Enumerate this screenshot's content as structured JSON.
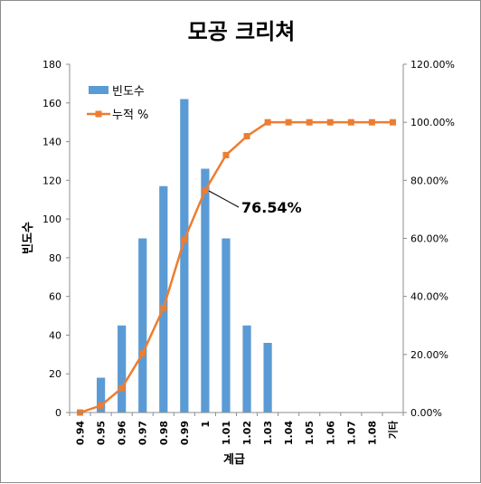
{
  "chart_data": {
    "type": "bar",
    "title": "모공 크리쳐",
    "xlabel": "계급",
    "ylabel": "빈도수",
    "categories": [
      "0.94",
      "0.95",
      "0.96",
      "0.97",
      "0.98",
      "0.99",
      "1",
      "1.01",
      "1.02",
      "1.03",
      "1.04",
      "1.05",
      "1.06",
      "1.07",
      "1.08",
      "기타"
    ],
    "ylim": [
      0,
      180
    ],
    "yticks": [
      "0",
      "20",
      "40",
      "60",
      "80",
      "100",
      "120",
      "140",
      "160",
      "180"
    ],
    "y2lim": [
      0,
      120
    ],
    "y2ticks": [
      "0.00%",
      "20.00%",
      "40.00%",
      "60.00%",
      "80.00%",
      "100.00%",
      "120.00%"
    ],
    "series": [
      {
        "name": "빈도수",
        "type": "bar",
        "axis": "left",
        "color": "#5b9bd5",
        "values": [
          0,
          18,
          45,
          90,
          117,
          162,
          126,
          90,
          45,
          36,
          0,
          0,
          0,
          0,
          0,
          0
        ]
      },
      {
        "name": "누적 %",
        "type": "line",
        "axis": "right",
        "color": "#ed7d31",
        "values": [
          0,
          2.4,
          8.4,
          20.3,
          36.0,
          59.5,
          76.54,
          88.7,
          95.2,
          100,
          100,
          100,
          100,
          100,
          100,
          100
        ]
      }
    ],
    "annotation": {
      "text": "76.54%",
      "category_index": 6
    },
    "legend": "top-left",
    "grid": false
  }
}
